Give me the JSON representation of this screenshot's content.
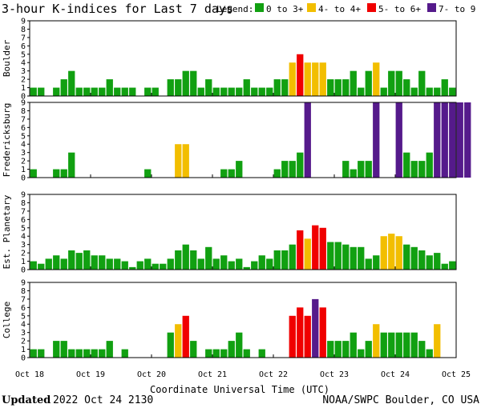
{
  "title": "3-hour K-indices for Last 7 days",
  "legend": {
    "label": "Legend:",
    "items": [
      {
        "label": "0 to 3+",
        "color": "#11a011"
      },
      {
        "label": "4- to 4+",
        "color": "#f2be00"
      },
      {
        "label": "5- to 6+",
        "color": "#f00000"
      },
      {
        "label": "7- to 9",
        "color": "#551a8b"
      }
    ]
  },
  "footer": {
    "updated_label": "Updated",
    "updated_value": "2022 Oct 24 2130",
    "source": "NOAA/SWPC Boulder, CO USA"
  },
  "chart_data": {
    "type": "bar",
    "xlabel": "Coordinate Universal Time (UTC)",
    "x_ticks": [
      "Oct 18",
      "Oct 19",
      "Oct 20",
      "Oct 21",
      "Oct 22",
      "Oct 23",
      "Oct 24",
      "Oct 25"
    ],
    "y_ticks": [
      "0",
      "1",
      "2",
      "3",
      "4",
      "5",
      "6",
      "7",
      "8",
      "9"
    ],
    "ylim": [
      0,
      9
    ],
    "bars_per_day": 8,
    "panels": [
      {
        "name": "Boulder",
        "values": [
          1,
          1,
          0,
          1,
          2,
          3,
          1,
          1,
          1,
          1,
          2,
          1,
          1,
          1,
          0,
          1,
          1,
          0,
          2,
          2,
          3,
          3,
          1,
          2,
          1,
          1,
          1,
          1,
          2,
          1,
          1,
          1,
          2,
          2,
          4,
          5,
          4,
          4,
          4,
          2,
          2,
          2,
          3,
          1,
          3,
          4,
          1,
          3,
          3,
          2,
          1,
          3,
          1,
          1,
          2,
          1,
          0
        ]
      },
      {
        "name": "Fredericksburg",
        "values": [
          1,
          0,
          0,
          1,
          1,
          3,
          0,
          0,
          0,
          0,
          0,
          0,
          0,
          0,
          0,
          1,
          0,
          0,
          0,
          4,
          4,
          0,
          0,
          0,
          0,
          1,
          1,
          2,
          0,
          0,
          0,
          0,
          1,
          2,
          2,
          3,
          9,
          0,
          0,
          0,
          0,
          2,
          1,
          2,
          2,
          9,
          0,
          0,
          9,
          3,
          2,
          2,
          3,
          9,
          9,
          9,
          9,
          9,
          0
        ]
      },
      {
        "name": "Est. Planetary",
        "values": [
          1,
          0.7,
          1.3,
          1.7,
          1.3,
          2.3,
          2,
          2.3,
          1.7,
          1.7,
          1.3,
          1.3,
          1,
          0.3,
          1,
          1.3,
          0.7,
          0.7,
          1.3,
          2.3,
          3,
          2.3,
          1.3,
          2.7,
          1.3,
          1.7,
          1,
          1.3,
          0.3,
          1,
          1.7,
          1.3,
          2.3,
          2.3,
          3,
          4.7,
          3.7,
          5.3,
          5,
          3.3,
          3.3,
          3,
          2.7,
          2.7,
          1.3,
          1.7,
          4,
          4.3,
          4,
          3,
          2.7,
          2.3,
          1.7,
          2,
          0.7,
          1
        ]
      },
      {
        "name": "College",
        "values": [
          1,
          1,
          0,
          2,
          2,
          1,
          1,
          1,
          1,
          1,
          2,
          0,
          1,
          0,
          0,
          0,
          0,
          0,
          3,
          4,
          5,
          2,
          0,
          1,
          1,
          1,
          2,
          3,
          1,
          0,
          1,
          0,
          0,
          0,
          5,
          6,
          5,
          7,
          6,
          2,
          2,
          2,
          3,
          1,
          2,
          4,
          3,
          3,
          3,
          3,
          3,
          2,
          1,
          4,
          0,
          0
        ]
      }
    ]
  }
}
